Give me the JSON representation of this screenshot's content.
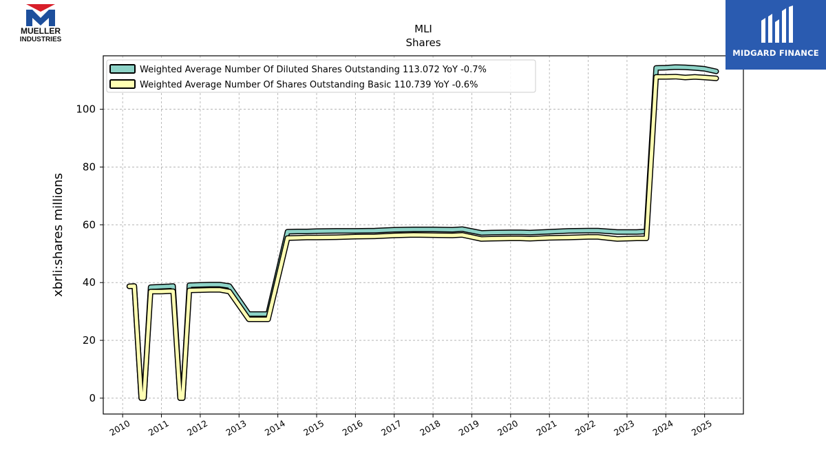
{
  "logos": {
    "left": {
      "line1": "MUELLER",
      "line2": "INDUSTRIES"
    },
    "right": {
      "name": "MIDGARD FINANCE"
    }
  },
  "chart_data": {
    "type": "line",
    "title": "MLI",
    "subtitle": "Shares",
    "xlabel": "",
    "ylabel": "xbrli:shares millions",
    "xlim": [
      2009.5,
      2026.0
    ],
    "ylim": [
      -5.5,
      118.5
    ],
    "x_ticks": [
      "2010",
      "2011",
      "2012",
      "2013",
      "2014",
      "2015",
      "2016",
      "2017",
      "2018",
      "2019",
      "2020",
      "2021",
      "2022",
      "2023",
      "2024",
      "2025"
    ],
    "y_ticks": [
      0,
      20,
      40,
      60,
      80,
      100
    ],
    "grid": true,
    "legend_position": "top-left",
    "series": [
      {
        "name": "Weighted Average Number Of Diluted Shares Outstanding  113.072 YoY -0.7%",
        "color": "#8dd3c7",
        "x": [
          2010.17,
          2010.3,
          2010.48,
          2010.55,
          2010.72,
          2011.0,
          2011.2,
          2011.3,
          2011.48,
          2011.55,
          2011.72,
          2012.0,
          2012.25,
          2012.5,
          2012.75,
          2013.25,
          2013.5,
          2013.75,
          2014.25,
          2014.5,
          2014.75,
          2015.0,
          2015.5,
          2016.0,
          2016.5,
          2017.0,
          2017.5,
          2018.0,
          2018.5,
          2018.75,
          2019.25,
          2019.5,
          2020.0,
          2020.25,
          2020.5,
          2021.0,
          2021.5,
          2022.0,
          2022.25,
          2022.75,
          2023.25,
          2023.5,
          2023.75,
          2024.0,
          2024.25,
          2024.5,
          2024.75,
          2025.0,
          2025.3
        ],
        "y": [
          38.7,
          38.8,
          0.0,
          0.0,
          38.4,
          38.6,
          38.7,
          38.8,
          0.0,
          0.0,
          39.1,
          39.2,
          39.3,
          39.3,
          38.8,
          29.1,
          29.1,
          29.1,
          57.6,
          57.7,
          57.7,
          57.8,
          57.9,
          57.9,
          58.0,
          58.3,
          58.4,
          58.4,
          58.3,
          58.5,
          57.2,
          57.3,
          57.4,
          57.4,
          57.3,
          57.6,
          57.9,
          58.0,
          58.0,
          57.5,
          57.5,
          57.7,
          114.3,
          114.4,
          114.6,
          114.5,
          114.3,
          114.0,
          113.1
        ]
      },
      {
        "name": "Weighted Average Number Of Shares Outstanding Basic  110.739 YoY -0.6%",
        "color": "#ffffb3",
        "x": [
          2010.17,
          2010.3,
          2010.48,
          2010.55,
          2010.72,
          2011.0,
          2011.2,
          2011.3,
          2011.48,
          2011.55,
          2011.72,
          2012.0,
          2012.25,
          2012.5,
          2012.75,
          2013.25,
          2013.5,
          2013.75,
          2014.25,
          2014.5,
          2014.75,
          2015.0,
          2015.5,
          2016.0,
          2016.5,
          2017.0,
          2017.5,
          2018.0,
          2018.5,
          2018.75,
          2019.25,
          2019.5,
          2020.0,
          2020.25,
          2020.5,
          2021.0,
          2021.5,
          2022.0,
          2022.25,
          2022.75,
          2023.25,
          2023.5,
          2023.75,
          2024.0,
          2024.25,
          2024.5,
          2024.75,
          2025.0,
          2025.3
        ],
        "y": [
          38.7,
          38.8,
          0.0,
          0.0,
          36.9,
          36.9,
          37.0,
          37.0,
          0.0,
          0.0,
          37.3,
          37.4,
          37.5,
          37.5,
          36.9,
          27.3,
          27.3,
          27.3,
          55.4,
          55.5,
          55.6,
          55.6,
          55.7,
          55.9,
          56.0,
          56.3,
          56.5,
          56.4,
          56.3,
          56.5,
          55.1,
          55.2,
          55.3,
          55.3,
          55.2,
          55.5,
          55.6,
          55.8,
          55.8,
          55.1,
          55.3,
          55.3,
          111.2,
          111.2,
          111.3,
          111.0,
          111.2,
          111.0,
          110.7
        ]
      }
    ]
  }
}
